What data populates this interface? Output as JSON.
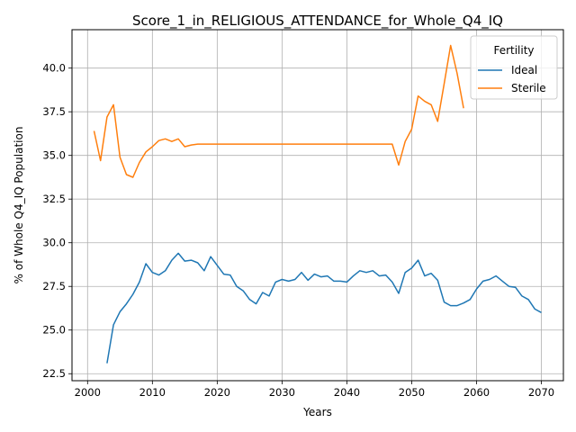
{
  "chart_data": {
    "type": "line",
    "title": "Score_1_in_RELIGIOUS_ATTENDANCE_for_Whole_Q4_IQ",
    "xlabel": "Years",
    "ylabel": "% of Whole Q4_IQ Population",
    "xlim": [
      1997.6,
      2073.4
    ],
    "ylim": [
      22.1,
      42.2
    ],
    "xticks": [
      2000,
      2010,
      2020,
      2030,
      2040,
      2050,
      2060,
      2070
    ],
    "yticks": [
      22.5,
      25.0,
      27.5,
      30.0,
      32.5,
      35.0,
      37.5,
      40.0
    ],
    "xtick_labels": [
      "2000",
      "2010",
      "2020",
      "2030",
      "2040",
      "2050",
      "2060",
      "2070"
    ],
    "ytick_labels": [
      "22.5",
      "25.0",
      "27.5",
      "30.0",
      "32.5",
      "35.0",
      "37.5",
      "40.0"
    ],
    "grid": true,
    "legend": {
      "title": "Fertility",
      "placement": "top-right"
    },
    "series": [
      {
        "name": "Ideal",
        "color": "#1f77b4",
        "x": [
          2003,
          2004,
          2005,
          2006,
          2007,
          2008,
          2009,
          2010,
          2011,
          2012,
          2013,
          2014,
          2015,
          2016,
          2017,
          2018,
          2019,
          2020,
          2021,
          2022,
          2023,
          2024,
          2025,
          2026,
          2027,
          2028,
          2029,
          2030,
          2031,
          2032,
          2033,
          2034,
          2035,
          2036,
          2037,
          2038,
          2039,
          2040,
          2041,
          2042,
          2043,
          2044,
          2045,
          2046,
          2047,
          2048,
          2049,
          2050,
          2051,
          2052,
          2053,
          2054,
          2055,
          2056,
          2057,
          2058,
          2059,
          2060,
          2061,
          2062,
          2063,
          2064,
          2065,
          2066,
          2067,
          2068,
          2069,
          2070
        ],
        "y": [
          23.1,
          25.3,
          26.05,
          26.5,
          27.05,
          27.75,
          28.8,
          28.3,
          28.15,
          28.4,
          29.0,
          29.4,
          28.95,
          29.0,
          28.85,
          28.4,
          29.2,
          28.7,
          28.2,
          28.15,
          27.5,
          27.25,
          26.75,
          26.5,
          27.15,
          26.95,
          27.75,
          27.9,
          27.8,
          27.9,
          28.3,
          27.85,
          28.2,
          28.05,
          28.1,
          27.8,
          27.8,
          27.75,
          28.1,
          28.4,
          28.3,
          28.4,
          28.1,
          28.15,
          27.75,
          27.1,
          28.3,
          28.55,
          29.0,
          28.1,
          28.25,
          27.85,
          26.6,
          26.4,
          26.4,
          26.55,
          26.75,
          27.35,
          27.8,
          27.9,
          28.1,
          27.8,
          27.5,
          27.45,
          26.95,
          26.75,
          26.2,
          26.0
        ]
      },
      {
        "name": "Sterile",
        "color": "#ff7f0e",
        "x": [
          2001,
          2002,
          2003,
          2004,
          2005,
          2006,
          2007,
          2008,
          2009,
          2010,
          2011,
          2012,
          2013,
          2014,
          2015,
          2016,
          2017,
          2018,
          2019,
          2020,
          2021,
          2022,
          2023,
          2024,
          2025,
          2026,
          2027,
          2028,
          2029,
          2030,
          2031,
          2032,
          2033,
          2034,
          2035,
          2036,
          2037,
          2038,
          2039,
          2040,
          2041,
          2042,
          2043,
          2044,
          2045,
          2046,
          2047,
          2048,
          2049,
          2050,
          2051,
          2052,
          2053,
          2054,
          2055,
          2056,
          2057,
          2058
        ],
        "y": [
          36.4,
          34.7,
          37.2,
          37.9,
          34.9,
          33.9,
          33.75,
          34.6,
          35.2,
          35.5,
          35.85,
          35.95,
          35.8,
          35.95,
          35.5,
          35.6,
          35.65,
          35.65,
          35.65,
          35.65,
          35.65,
          35.65,
          35.65,
          35.65,
          35.65,
          35.65,
          35.65,
          35.65,
          35.65,
          35.65,
          35.65,
          35.65,
          35.65,
          35.65,
          35.65,
          35.65,
          35.65,
          35.65,
          35.65,
          35.65,
          35.65,
          35.65,
          35.65,
          35.65,
          35.65,
          35.65,
          35.65,
          34.45,
          35.8,
          36.5,
          38.4,
          38.1,
          37.9,
          36.95,
          39.1,
          41.3,
          39.7,
          37.7
        ]
      }
    ]
  }
}
